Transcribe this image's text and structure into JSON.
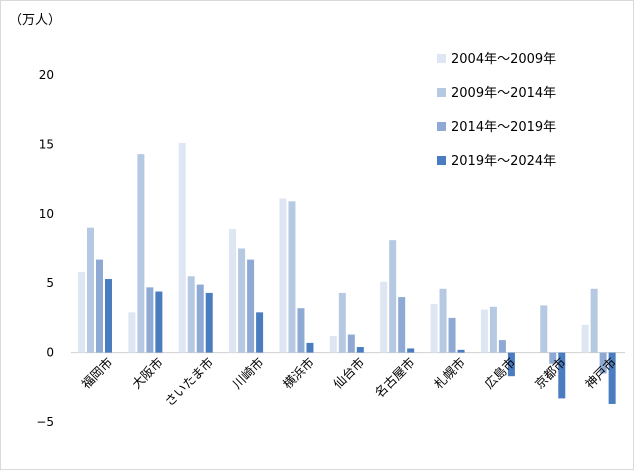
{
  "chart_data": {
    "type": "bar",
    "unit_label": "（万人）",
    "categories": [
      "福岡市",
      "大阪市",
      "さいたま市",
      "川崎市",
      "横浜市",
      "仙台市",
      "名古屋市",
      "札幌市",
      "広島市",
      "京都市",
      "神戸市"
    ],
    "series": [
      {
        "name": "2004年～2009年",
        "color": "#dde6f2",
        "values": [
          5.8,
          2.9,
          15.1,
          8.9,
          11.1,
          1.2,
          5.1,
          3.5,
          3.1,
          0.0,
          2.0
        ]
      },
      {
        "name": "2009年～2014年",
        "color": "#b6c9e3",
        "values": [
          9.0,
          14.3,
          5.5,
          7.5,
          10.9,
          4.3,
          8.1,
          4.6,
          3.3,
          3.4,
          4.6
        ]
      },
      {
        "name": "2014年～2019年",
        "color": "#8eaad4",
        "values": [
          6.7,
          4.7,
          4.9,
          6.7,
          3.2,
          1.3,
          4.0,
          2.5,
          0.9,
          -0.8,
          -1.5
        ]
      },
      {
        "name": "2019年～2024年",
        "color": "#4a7cc0",
        "values": [
          5.3,
          4.4,
          4.3,
          2.9,
          0.7,
          0.4,
          0.3,
          0.2,
          -1.7,
          -3.3,
          -3.7
        ]
      }
    ],
    "ylim": [
      -5,
      20
    ],
    "yticks": [
      -5,
      0,
      5,
      10,
      15,
      20
    ],
    "ytick_labels": [
      "−5",
      "0",
      "5",
      "10",
      "15",
      "20"
    ],
    "legend_position": "top-right",
    "gridlines": false
  }
}
